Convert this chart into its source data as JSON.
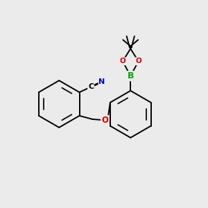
{
  "background_color": "#ebebeb",
  "bond_color": "#000000",
  "atom_colors": {
    "N": "#0000cc",
    "O": "#dd0000",
    "B": "#00aa00",
    "C": "#000000"
  },
  "figsize": [
    3.0,
    3.0
  ],
  "dpi": 100
}
